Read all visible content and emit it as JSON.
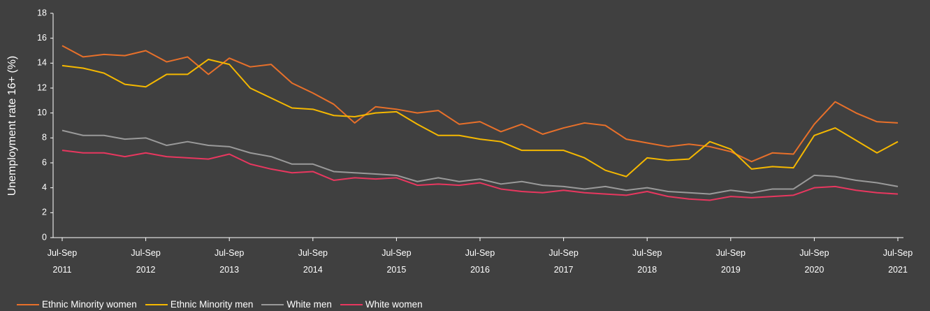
{
  "chart_data": {
    "type": "line",
    "y_label": "Unemployment rate 16+ (%)",
    "categories": [
      "Jul-Sep\n2011",
      null,
      null,
      null,
      "Jul-Sep\n2012",
      null,
      null,
      null,
      "Jul-Sep\n2013",
      null,
      null,
      null,
      "Jul-Sep\n2014",
      null,
      null,
      null,
      "Jul-Sep\n2015",
      null,
      null,
      null,
      "Jul-Sep\n2016",
      null,
      null,
      null,
      "Jul-Sep\n2017",
      null,
      null,
      null,
      "Jul-Sep\n2018",
      null,
      null,
      null,
      "Jul-Sep\n2019",
      null,
      null,
      null,
      "Jul-Sep\n2020",
      null,
      null,
      null,
      "Jul-Sep\n2021"
    ],
    "series": [
      {
        "name": "Ethnic Minority women",
        "color": "#e8702a",
        "values": [
          15.4,
          14.5,
          14.7,
          14.6,
          15.0,
          14.1,
          14.5,
          13.1,
          14.4,
          13.7,
          13.9,
          12.4,
          11.6,
          10.7,
          9.2,
          10.5,
          10.3,
          10.0,
          10.2,
          9.1,
          9.3,
          8.5,
          9.1,
          8.3,
          8.8,
          9.2,
          9.0,
          7.9,
          7.6,
          7.3,
          7.5,
          7.3,
          6.9,
          6.1,
          6.8,
          6.7,
          9.1,
          10.9,
          10.0,
          9.3,
          9.2
        ]
      },
      {
        "name": "Ethnic Minority men",
        "color": "#f5b800",
        "values": [
          13.8,
          13.6,
          13.2,
          12.3,
          12.1,
          13.1,
          13.1,
          14.3,
          13.9,
          12.0,
          11.2,
          10.4,
          10.3,
          9.8,
          9.7,
          10.0,
          10.1,
          9.1,
          8.2,
          8.2,
          7.9,
          7.7,
          7.0,
          7.0,
          7.0,
          6.4,
          5.4,
          4.9,
          6.4,
          6.2,
          6.3,
          7.7,
          7.1,
          5.5,
          5.7,
          5.6,
          8.2,
          8.8,
          7.8,
          6.8,
          7.7
        ]
      },
      {
        "name": "White men",
        "color": "#9a9a9a",
        "values": [
          8.6,
          8.2,
          8.2,
          7.9,
          8.0,
          7.4,
          7.7,
          7.4,
          7.3,
          6.8,
          6.5,
          5.9,
          5.9,
          5.3,
          5.2,
          5.1,
          5.0,
          4.5,
          4.8,
          4.5,
          4.7,
          4.3,
          4.5,
          4.2,
          4.1,
          3.9,
          4.1,
          3.8,
          4.0,
          3.7,
          3.6,
          3.5,
          3.8,
          3.6,
          3.9,
          3.9,
          5.0,
          4.9,
          4.6,
          4.4,
          4.1
        ]
      },
      {
        "name": "White women",
        "color": "#e8375f",
        "values": [
          7.0,
          6.8,
          6.8,
          6.5,
          6.8,
          6.5,
          6.4,
          6.3,
          6.7,
          5.9,
          5.5,
          5.2,
          5.3,
          4.6,
          4.8,
          4.7,
          4.8,
          4.2,
          4.3,
          4.2,
          4.4,
          3.9,
          3.7,
          3.6,
          3.8,
          3.6,
          3.5,
          3.4,
          3.7,
          3.3,
          3.1,
          3.0,
          3.3,
          3.2,
          3.3,
          3.4,
          4.0,
          4.1,
          3.8,
          3.6,
          3.5
        ]
      }
    ],
    "ylim": [
      0,
      18
    ],
    "yticks": [
      0,
      2,
      4,
      6,
      8,
      10,
      12,
      14,
      16,
      18
    ],
    "grid": false,
    "legend": "bottom-left"
  }
}
